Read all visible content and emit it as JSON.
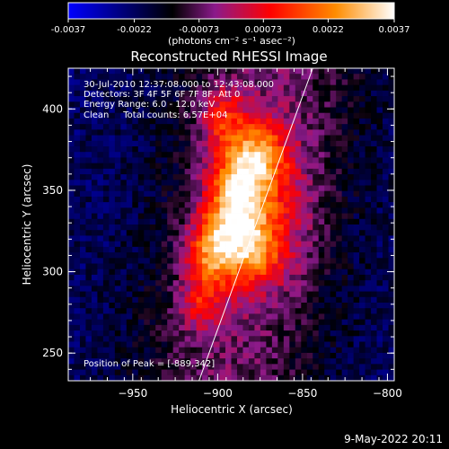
{
  "colorbar": {
    "ticks": [
      "-0.0037",
      "-0.0022",
      "-0.00073",
      "0.00073",
      "0.0022",
      "0.0037"
    ],
    "tick_values": [
      -0.0037,
      -0.0022,
      -0.00073,
      0.00073,
      0.0022,
      0.0037
    ],
    "range": [
      -0.0037,
      0.0037
    ],
    "units": "(photons cm⁻² s⁻¹ asec⁻²)",
    "colors": [
      "#0000ff",
      "#000000",
      "#8b1a8b",
      "#ff0000",
      "#ff8c00",
      "#ffffff"
    ]
  },
  "annotations": {
    "time": "30-Jul-2010 12:37:08.000 to 12:43:08.000",
    "detectors": "Detectors: 3F 4F 5F 6F 7F 8F, Att 0",
    "energy": "Energy Range: 6.0 - 12.0 keV",
    "algorithm": "Clean     Total counts: 6.57E+04",
    "peak": "Position of Peak = [-889,342]"
  },
  "footer": {
    "date": "9-May-2022 20:11"
  },
  "chart_data": {
    "type": "heatmap",
    "title": "Reconstructed RHESSI Image",
    "xlabel": "Heliocentric X (arcsec)",
    "ylabel": "Heliocentric Y (arcsec)",
    "xlim": [
      -988,
      -796
    ],
    "ylim": [
      233,
      425
    ],
    "xticks": [
      -950,
      -900,
      -850,
      -800
    ],
    "yticks": [
      250,
      300,
      350,
      400
    ],
    "xtick_labels": [
      "−950",
      "−900",
      "−850",
      "−800"
    ],
    "ytick_labels": [
      "250",
      "300",
      "350",
      "400"
    ],
    "peak": [
      -889,
      342
    ],
    "limb_line": {
      "x": [
        -911,
        -844
      ],
      "y": [
        233,
        425
      ]
    },
    "blobs": [
      {
        "x": -889,
        "y": 342,
        "amp": 0.0037,
        "sx": 12,
        "sy": 22
      },
      {
        "x": -876,
        "y": 372,
        "amp": 0.0024,
        "sx": 12,
        "sy": 14
      },
      {
        "x": -905,
        "y": 312,
        "amp": 0.0026,
        "sx": 10,
        "sy": 15
      },
      {
        "x": -898,
        "y": 395,
        "amp": 0.0018,
        "sx": 10,
        "sy": 14
      },
      {
        "x": -880,
        "y": 310,
        "amp": 0.0019,
        "sx": 14,
        "sy": 14
      },
      {
        "x": -910,
        "y": 280,
        "amp": 0.0016,
        "sx": 9,
        "sy": 12
      },
      {
        "x": -868,
        "y": 340,
        "amp": 0.0014,
        "sx": 18,
        "sy": 30
      }
    ],
    "background": {
      "base": -0.0022,
      "ridge_x": -880,
      "ridge_width": 55
    },
    "grid": false
  }
}
